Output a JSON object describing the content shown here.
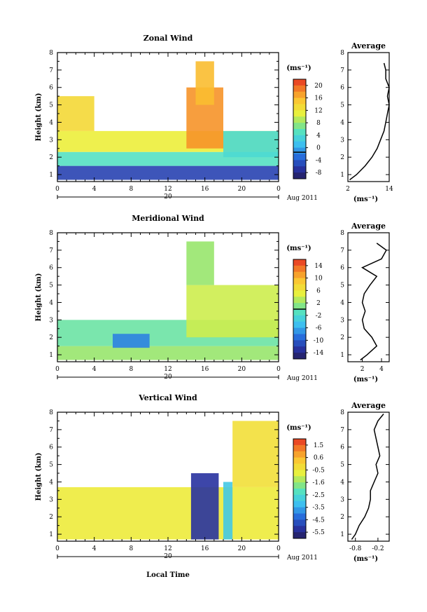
{
  "x_label": "Local Time",
  "date_label": "Aug 2011",
  "day_label": "20",
  "colorbar_unit": "(ms⁻¹)",
  "avg_unit": "(ms⁻¹)",
  "chart_data": [
    {
      "type": "heatmap",
      "title": "Zonal Wind",
      "xlabel": "",
      "ylabel": "Height (km)",
      "xlim": [
        0,
        24
      ],
      "ylim": [
        0.6,
        8
      ],
      "x_ticks": [
        "0",
        "4",
        "8",
        "12",
        "16",
        "20",
        "0"
      ],
      "y_ticks": [
        "1",
        "2",
        "3",
        "4",
        "5",
        "6",
        "7",
        "8"
      ],
      "colorbar": {
        "unit": "(ms⁻¹)",
        "ticks": [
          "20",
          "16",
          "12",
          "8",
          "4",
          "0",
          "-4",
          "-8"
        ],
        "range": [
          -8,
          22
        ],
        "zero_line": 0
      },
      "profile": {
        "title": "Average",
        "x_ticks": [
          "2",
          "14"
        ],
        "xlim": [
          2,
          14
        ],
        "heights": [
          0.7,
          1.0,
          1.5,
          2.0,
          2.5,
          3.0,
          3.5,
          4.0,
          4.5,
          5.0,
          5.5,
          6.0,
          6.5,
          7.0,
          7.4
        ],
        "values": [
          2.5,
          4.5,
          7,
          9,
          10.5,
          11.5,
          12.5,
          13,
          13.5,
          14,
          13.5,
          14,
          13,
          13,
          12.5
        ]
      },
      "cells": [
        {
          "x": [
            0,
            24
          ],
          "y": [
            0.7,
            1.5
          ],
          "v": -4
        },
        {
          "x": [
            0,
            24
          ],
          "y": [
            1.5,
            2.3
          ],
          "v": 6
        },
        {
          "x": [
            0,
            24
          ],
          "y": [
            2.3,
            3.5
          ],
          "v": 12
        },
        {
          "x": [
            0,
            4
          ],
          "y": [
            3.5,
            5.5
          ],
          "v": 14
        },
        {
          "x": [
            14,
            18
          ],
          "y": [
            2.5,
            6
          ],
          "v": 18
        },
        {
          "x": [
            15,
            17
          ],
          "y": [
            5,
            7.5
          ],
          "v": 16
        },
        {
          "x": [
            18,
            24
          ],
          "y": [
            2,
            3.5
          ],
          "v": 5
        }
      ]
    },
    {
      "type": "heatmap",
      "title": "Meridional Wind",
      "xlabel": "",
      "ylabel": "Height (km)",
      "xlim": [
        0,
        24
      ],
      "ylim": [
        0.6,
        8
      ],
      "x_ticks": [
        "0",
        "4",
        "8",
        "12",
        "16",
        "20",
        "0"
      ],
      "y_ticks": [
        "1",
        "2",
        "3",
        "4",
        "5",
        "6",
        "7",
        "8"
      ],
      "colorbar": {
        "unit": "(ms⁻¹)",
        "ticks": [
          "14",
          "10",
          "6",
          "2",
          "-2",
          "-6",
          "-10",
          "-14"
        ],
        "range": [
          -16,
          16
        ],
        "zero_line": 0
      },
      "profile": {
        "title": "Average",
        "x_ticks": [
          "2",
          "4"
        ],
        "xlim": [
          0.5,
          4.8
        ],
        "heights": [
          0.7,
          1.0,
          1.5,
          2.0,
          2.5,
          3.0,
          3.5,
          4.0,
          4.5,
          5.0,
          5.5,
          6.0,
          6.5,
          7.0,
          7.4
        ],
        "values": [
          1.8,
          2.5,
          3.5,
          3.0,
          2.2,
          2.0,
          2.3,
          2.0,
          2.2,
          2.8,
          3.5,
          2.0,
          4.0,
          4.5,
          3.5
        ]
      },
      "cells": [
        {
          "x": [
            0,
            24
          ],
          "y": [
            0.7,
            1.5
          ],
          "v": 2
        },
        {
          "x": [
            0,
            24
          ],
          "y": [
            1.5,
            3.0
          ],
          "v": 0
        },
        {
          "x": [
            6,
            10
          ],
          "y": [
            1.4,
            2.2
          ],
          "v": -8
        },
        {
          "x": [
            14,
            24
          ],
          "y": [
            2,
            5
          ],
          "v": 4
        },
        {
          "x": [
            14,
            17
          ],
          "y": [
            5,
            7.5
          ],
          "v": 2
        }
      ]
    },
    {
      "type": "heatmap",
      "title": "Vertical Wind",
      "xlabel": "Local Time",
      "ylabel": "Height (km)",
      "xlim": [
        0,
        24
      ],
      "ylim": [
        0.6,
        8
      ],
      "x_ticks": [
        "0",
        "4",
        "8",
        "12",
        "16",
        "20",
        "0"
      ],
      "y_ticks": [
        "1",
        "2",
        "3",
        "4",
        "5",
        "6",
        "7",
        "8"
      ],
      "colorbar": {
        "unit": "(ms⁻¹)",
        "ticks": [
          "1.5",
          "0.6",
          "-0.5",
          "-1.6",
          "-2.5",
          "-3.5",
          "-4.5",
          "-5.5"
        ],
        "range": [
          -6,
          2
        ],
        "zero_line": null
      },
      "profile": {
        "title": "Average",
        "x_ticks": [
          "-0.8",
          "-0.2"
        ],
        "xlim": [
          -1.0,
          0.1
        ],
        "heights": [
          0.7,
          1.0,
          1.5,
          2.0,
          2.5,
          3.0,
          3.5,
          4.0,
          4.5,
          5.0,
          5.5,
          6.0,
          6.5,
          7.0,
          7.5,
          7.9
        ],
        "values": [
          -0.9,
          -0.8,
          -0.7,
          -0.55,
          -0.45,
          -0.4,
          -0.4,
          -0.3,
          -0.2,
          -0.25,
          -0.15,
          -0.2,
          -0.25,
          -0.3,
          -0.2,
          -0.05
        ]
      },
      "cells": [
        {
          "x": [
            0,
            24
          ],
          "y": [
            0.7,
            3.7
          ],
          "v": -0.6
        },
        {
          "x": [
            14.5,
            17.5
          ],
          "y": [
            0.7,
            4.5
          ],
          "v": -5.2
        },
        {
          "x": [
            18,
            19
          ],
          "y": [
            0.7,
            4
          ],
          "v": -3
        },
        {
          "x": [
            19,
            24
          ],
          "y": [
            3.7,
            7.5
          ],
          "v": -0.3
        }
      ]
    }
  ]
}
